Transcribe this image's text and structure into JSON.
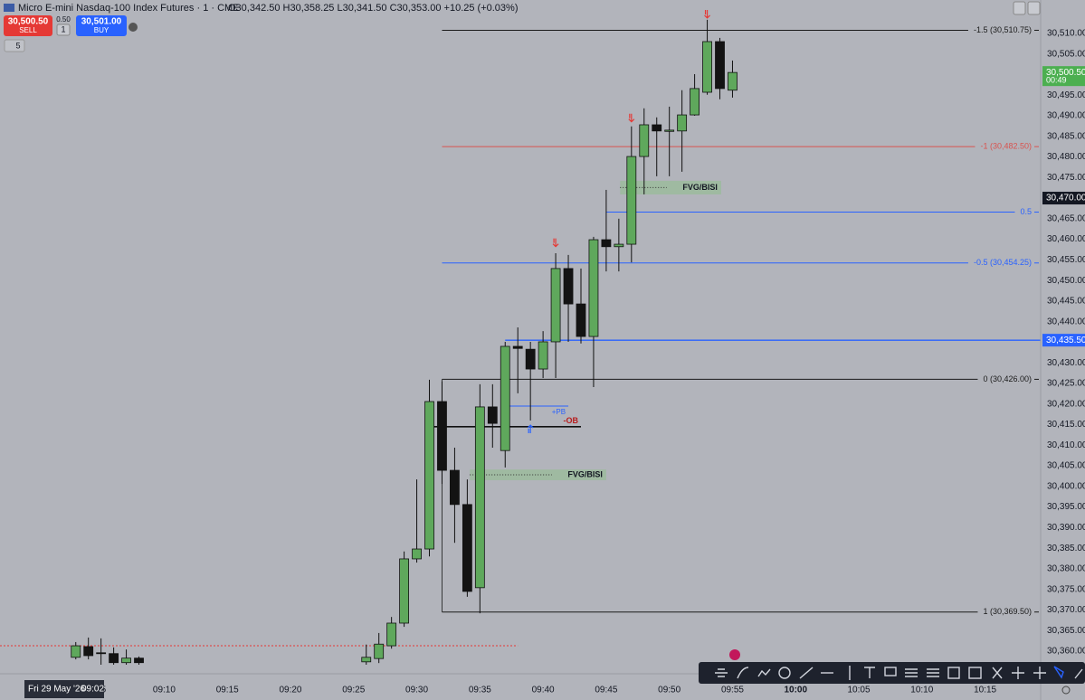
{
  "ui": {
    "symbol": "Micro E-mini Nasdaq-100 Index Futures · 1 · CME",
    "sell_price": "30,500.50",
    "sell": "SELL",
    "spread": "0.50",
    "qty": "1",
    "buy_price": "30,501.00",
    "buy": "BUY",
    "indicators": "5",
    "date_badge": "Fri 29 May '26",
    "time_badge": "09:02"
  },
  "chart_data": {
    "type": "candlestick",
    "title": "O30,342.50 H30,358.25 L30,341.50 C30,353.00 +10.25 (+0.03%)",
    "x": [
      543,
      544,
      545,
      546,
      547,
      548,
      566,
      567,
      568,
      569,
      570,
      571,
      572,
      573,
      574,
      575,
      576,
      577,
      578,
      579,
      580,
      581,
      582,
      583,
      584,
      585,
      586,
      587,
      588,
      589,
      590,
      591,
      592,
      593,
      594,
      595
    ],
    "open": [
      30358.5,
      30361.1,
      30359.6,
      30359.4,
      30357.2,
      30358.3,
      30357.4,
      30358.2,
      30361.3,
      30366.8,
      30382.4,
      30384.8,
      30420.6,
      30403.9,
      30395.6,
      30375.4,
      30419.3,
      30408.7,
      30434.0,
      30433.3,
      30428.5,
      30435.1,
      30452.9,
      30444.3,
      30436.4,
      30459.9,
      30458.2,
      30458.8,
      30480.1,
      30487.8,
      30486.2,
      30486.3,
      30490.2,
      30495.7,
      30508.0,
      30496.2
    ],
    "high": [
      30362.2,
      30363.3,
      30363.1,
      30360.9,
      30360.4,
      30358.7,
      30361.6,
      30364.4,
      30368.3,
      30384.2,
      30401.7,
      30425.9,
      30425.5,
      30409.4,
      30401.7,
      30424.8,
      30424.8,
      30435.1,
      30438.6,
      30435.1,
      30437.7,
      30456.6,
      30456.2,
      30452.9,
      30460.6,
      30472.0,
      30465.0,
      30487.4,
      30491.8,
      30489.6,
      30492.2,
      30496.2,
      30500.1,
      30513.3,
      30508.9,
      30503.4
    ],
    "low": [
      30358.0,
      30358.0,
      30356.7,
      30356.7,
      30356.7,
      30356.7,
      30356.7,
      30357.1,
      30360.6,
      30365.9,
      30381.5,
      30383.0,
      30400.6,
      30386.3,
      30373.2,
      30369.2,
      30409.4,
      30404.6,
      30422.6,
      30416.0,
      30426.3,
      30426.3,
      30435.1,
      30434.7,
      30424.1,
      30452.2,
      30452.2,
      30454.4,
      30470.9,
      30475.3,
      30475.3,
      30476.4,
      30490.0,
      30495.1,
      30494.0,
      30494.4
    ],
    "close": [
      30361.3,
      30358.9,
      30359.4,
      30357.2,
      30358.3,
      30357.2,
      30358.5,
      30361.7,
      30366.8,
      30382.4,
      30384.8,
      30420.6,
      30403.9,
      30395.6,
      30374.5,
      30419.3,
      30415.3,
      30434.0,
      30433.5,
      30428.5,
      30435.1,
      30452.9,
      30444.3,
      30436.4,
      30459.9,
      30458.2,
      30458.8,
      30480.1,
      30487.8,
      30486.3,
      30486.5,
      30490.2,
      30496.6,
      30508.0,
      30496.6,
      30500.5
    ],
    "up_color": "#5fa85c",
    "down_color": "#131313",
    "xlim": [
      537,
      619.4
    ],
    "ylim": [
      30355.6,
      30518.1
    ],
    "xticks": [
      {
        "value": 545,
        "label": "05"
      },
      {
        "value": 550,
        "label": "09:10"
      },
      {
        "value": 555,
        "label": "09:15"
      },
      {
        "value": 560,
        "label": "09:20"
      },
      {
        "value": 565,
        "label": "09:25"
      },
      {
        "value": 570,
        "label": "09:30"
      },
      {
        "value": 575,
        "label": "09:35"
      },
      {
        "value": 580,
        "label": "09:40"
      },
      {
        "value": 585,
        "label": "09:45"
      },
      {
        "value": 590,
        "label": "09:50"
      },
      {
        "value": 595,
        "label": "09:55"
      },
      {
        "value": 600,
        "label": "10:00",
        "bold": true
      },
      {
        "value": 605,
        "label": "10:05"
      },
      {
        "value": 610,
        "label": "10:10"
      },
      {
        "value": 615,
        "label": "10:15"
      }
    ],
    "yticks": [
      {
        "value": 30510,
        "label": "30,510.00"
      },
      {
        "value": 30505,
        "label": "30,505.00"
      },
      {
        "value": 30500,
        "label": "30,500.00"
      },
      {
        "value": 30495,
        "label": "30,495.00"
      },
      {
        "value": 30490,
        "label": "30,490.00"
      },
      {
        "value": 30485,
        "label": "30,485.00"
      },
      {
        "value": 30480,
        "label": "30,480.00"
      },
      {
        "value": 30475,
        "label": "30,475.00"
      },
      {
        "value": 30470,
        "label": "30,470.00"
      },
      {
        "value": 30465,
        "label": "30,465.00"
      },
      {
        "value": 30460,
        "label": "30,460.00"
      },
      {
        "value": 30455,
        "label": "30,455.00"
      },
      {
        "value": 30450,
        "label": "30,450.00"
      },
      {
        "value": 30445,
        "label": "30,445.00"
      },
      {
        "value": 30440,
        "label": "30,440.00"
      },
      {
        "value": 30435,
        "label": "30,435.00"
      },
      {
        "value": 30430,
        "label": "30,430.00"
      },
      {
        "value": 30425,
        "label": "30,425.00"
      },
      {
        "value": 30420,
        "label": "30,420.00"
      },
      {
        "value": 30415,
        "label": "30,415.00"
      },
      {
        "value": 30410,
        "label": "30,410.00"
      },
      {
        "value": 30405,
        "label": "30,405.00"
      },
      {
        "value": 30400,
        "label": "30,400.00"
      },
      {
        "value": 30395,
        "label": "30,395.00"
      },
      {
        "value": 30390,
        "label": "30,390.00"
      },
      {
        "value": 30385,
        "label": "30,385.00"
      },
      {
        "value": 30380,
        "label": "30,380.00"
      },
      {
        "value": 30375,
        "label": "30,375.00"
      },
      {
        "value": 30370,
        "label": "30,370.00"
      },
      {
        "value": 30365,
        "label": "30,365.00"
      },
      {
        "value": 30360,
        "label": "30,360.00"
      }
    ],
    "levels": [
      {
        "label": "-1.5 (30,510.75)",
        "value": 30510.75,
        "start": 572,
        "color": "#1a1a1a"
      },
      {
        "label": "-1 (30,482.50)",
        "value": 30482.5,
        "start": 572,
        "color": "#d9534f"
      },
      {
        "label": "0.5",
        "value": 30466.6,
        "start": 585,
        "color": "#2962ff"
      },
      {
        "label": "-0.5 (30,454.25)",
        "value": 30454.25,
        "start": 572,
        "color": "#2962ff"
      },
      {
        "label": "0 (30,426.00)",
        "value": 30426,
        "start": 572,
        "color": "#1a1a1a"
      },
      {
        "label": "1 (30,369.50)",
        "value": 30369.5,
        "start": 572,
        "color": "#1a1a1a"
      }
    ],
    "hlines": [
      {
        "value": 30435.5,
        "start": 577,
        "color": "#2962ff"
      },
      {
        "value": 30361.3,
        "start": 537,
        "end": 578,
        "color": "#e53935",
        "dotted": true
      }
    ],
    "axis_markers": [
      {
        "value": 30500.5,
        "label": "30,500.50",
        "sub": "00:49",
        "color": "#4caf50"
      },
      {
        "value": 30470,
        "label": "30,470.00",
        "color": "#131722"
      },
      {
        "value": 30435.5,
        "label": "30,435.50",
        "color": "#2962ff"
      }
    ],
    "zones": [
      {
        "label": "FVG/BISI",
        "top": 30404.1,
        "bottom": 30401.5,
        "start": 574.2,
        "end": 585.0
      },
      {
        "label": "FVG/BISI",
        "top": 30474.2,
        "bottom": 30470.9,
        "start": 586.1,
        "end": 594.1
      }
    ],
    "marks": [
      {
        "label": "+PB",
        "value": 30419.5,
        "start": 577,
        "end": 582,
        "color": "#2962ff"
      },
      {
        "label": "-OB",
        "value": 30414.5,
        "start": 571,
        "end": 583,
        "color": "#b71c1c"
      }
    ],
    "arrows": [
      {
        "x": 593,
        "y": 30514.6,
        "dir": "down"
      },
      {
        "x": 587,
        "y": 30489.4,
        "dir": "down"
      },
      {
        "x": 581,
        "y": 30459.1,
        "dir": "down"
      },
      {
        "x": 579,
        "y": 30414.0,
        "dir": "up"
      }
    ]
  }
}
